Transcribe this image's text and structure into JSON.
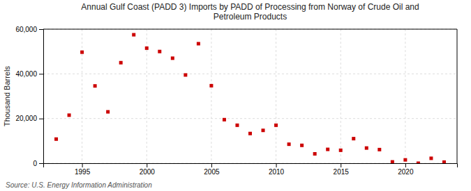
{
  "chart_data": {
    "type": "scatter",
    "title": "Annual Gulf Coast (PADD 3) Imports by PADD of Processing from Norway of Crude Oil and\nPetroleum Products",
    "y_label": "Thousand Barrels",
    "annotations": [
      "Source: U.S. Energy Information Administration"
    ],
    "x": [
      1993,
      1994,
      1995,
      1996,
      1997,
      1998,
      1999,
      2000,
      2001,
      2002,
      2003,
      2004,
      2005,
      2006,
      2007,
      2008,
      2009,
      2010,
      2011,
      2012,
      2013,
      2014,
      2015,
      2016,
      2017,
      2018,
      2019,
      2020,
      2021,
      2022,
      2023
    ],
    "values": [
      10800,
      21500,
      49700,
      34600,
      23000,
      45000,
      57500,
      51500,
      50000,
      47000,
      39500,
      53500,
      34700,
      19500,
      17000,
      13300,
      14700,
      17000,
      8500,
      8000,
      4200,
      6200,
      5800,
      11000,
      6800,
      6100,
      600,
      1500,
      0,
      2200,
      500
    ],
    "color": "#cc0000",
    "marker": "square",
    "xlim": [
      1992,
      2024
    ],
    "xticks": [
      1995,
      2000,
      2005,
      2010,
      2015,
      2020
    ],
    "ylim": [
      0,
      60000
    ],
    "yticks": [
      0,
      {
        "value": 20000,
        "label": "20,000"
      },
      {
        "value": 40000,
        "label": "40,000"
      },
      {
        "value": 60000,
        "label": "60,000"
      }
    ],
    "grid": true
  }
}
